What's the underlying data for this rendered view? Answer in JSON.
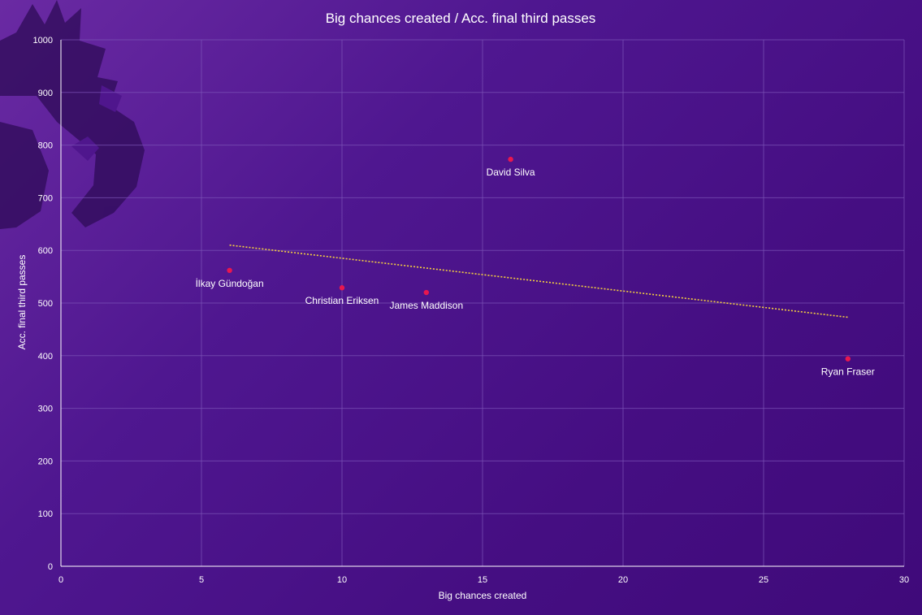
{
  "chart_data": {
    "type": "scatter",
    "title": "Big chances created / Acc. final third passes",
    "xlabel": "Big chances created",
    "ylabel": "Acc. final third passes",
    "xlim": [
      0,
      30
    ],
    "ylim": [
      0,
      1000
    ],
    "x_ticks": [
      0,
      5,
      10,
      15,
      20,
      25,
      30
    ],
    "y_ticks": [
      0,
      100,
      200,
      300,
      400,
      500,
      600,
      700,
      800,
      900,
      1000
    ],
    "grid": true,
    "points": [
      {
        "label": "İlkay Gündoğan",
        "x": 6,
        "y": 562
      },
      {
        "label": "Christian Eriksen",
        "x": 10,
        "y": 529
      },
      {
        "label": "James Maddison",
        "x": 13,
        "y": 520
      },
      {
        "label": "David Silva",
        "x": 16,
        "y": 773
      },
      {
        "label": "Ryan Fraser",
        "x": 28,
        "y": 394
      }
    ],
    "trendline": {
      "x": [
        6,
        28
      ],
      "y": [
        610,
        473
      ]
    },
    "colors": {
      "point": "#e8174f",
      "trendline": "#f4d03f",
      "grid": "#7d55b8",
      "text": "#ffffff",
      "background": "#4a1289"
    }
  }
}
